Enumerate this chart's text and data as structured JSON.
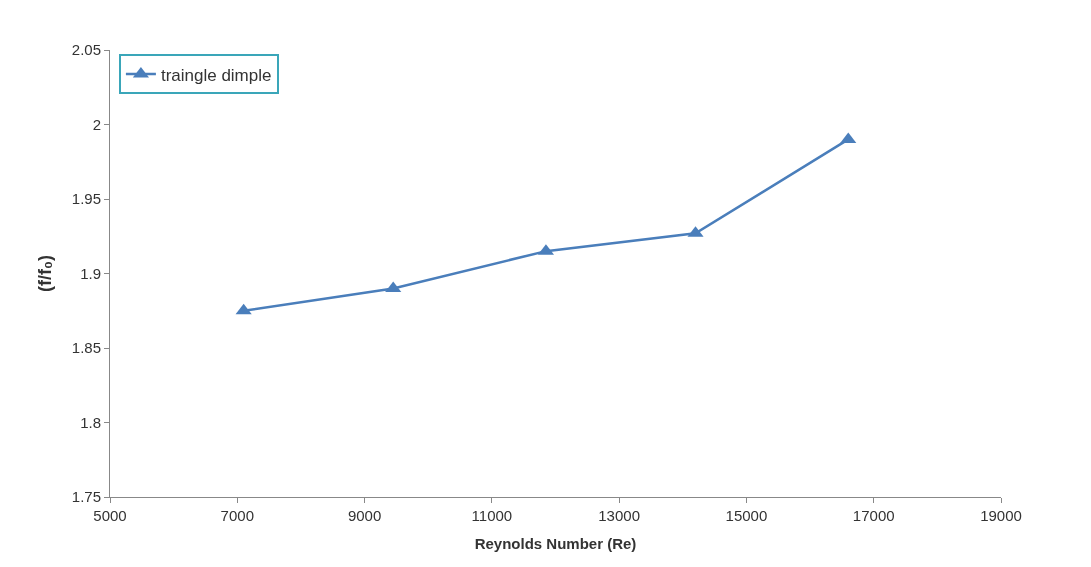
{
  "chart_data": {
    "type": "line",
    "xlabel": "Reynolds Number (Re)",
    "ylabel": "(f/f₀)",
    "x": [
      7100,
      9450,
      11850,
      14200,
      16600
    ],
    "series": [
      {
        "name": "traingle dimple",
        "color": "#4a7ebb",
        "values": [
          1.875,
          1.89,
          1.915,
          1.927,
          1.99
        ]
      }
    ],
    "xlim": [
      5000,
      19000
    ],
    "xticks": [
      5000,
      7000,
      9000,
      11000,
      13000,
      15000,
      17000,
      19000
    ],
    "ylim": [
      1.75,
      2.05
    ],
    "yticks": [
      1.75,
      1.8,
      1.85,
      1.9,
      1.95,
      2,
      2.05
    ],
    "legend": "top left",
    "marker": "triangle",
    "line_style": "solid"
  }
}
